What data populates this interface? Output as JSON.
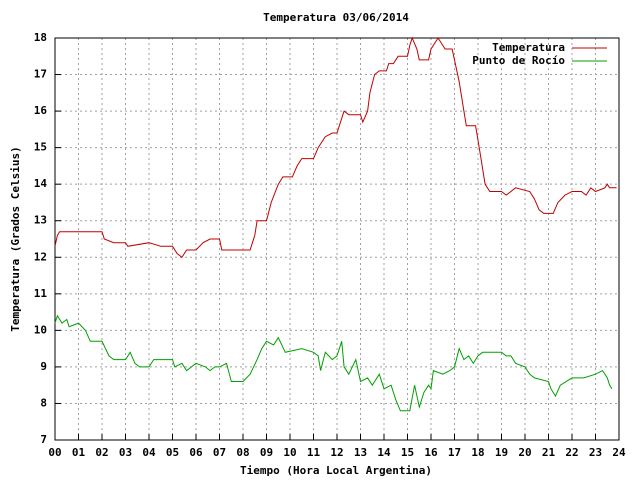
{
  "chart_data": {
    "type": "line",
    "title": "Temperatura 03/06/2014",
    "x_label": "Tiempo (Hora Local Argentina)",
    "y_label": "Temperatura (Grados Celsius)",
    "xlim": [
      0,
      24
    ],
    "ylim": [
      7,
      18
    ],
    "xticks": [
      {
        "value": 0,
        "label": "00"
      },
      {
        "value": 1,
        "label": "01"
      },
      {
        "value": 2,
        "label": "02"
      },
      {
        "value": 3,
        "label": "03"
      },
      {
        "value": 4,
        "label": "04"
      },
      {
        "value": 5,
        "label": "05"
      },
      {
        "value": 6,
        "label": "06"
      },
      {
        "value": 7,
        "label": "07"
      },
      {
        "value": 8,
        "label": "08"
      },
      {
        "value": 9,
        "label": "09"
      },
      {
        "value": 10,
        "label": "10"
      },
      {
        "value": 11,
        "label": "11"
      },
      {
        "value": 12,
        "label": "12"
      },
      {
        "value": 13,
        "label": "13"
      },
      {
        "value": 14,
        "label": "14"
      },
      {
        "value": 15,
        "label": "15"
      },
      {
        "value": 16,
        "label": "16"
      },
      {
        "value": 17,
        "label": "17"
      },
      {
        "value": 18,
        "label": "18"
      },
      {
        "value": 19,
        "label": "19"
      },
      {
        "value": 20,
        "label": "20"
      },
      {
        "value": 21,
        "label": "21"
      },
      {
        "value": 22,
        "label": "22"
      },
      {
        "value": 23,
        "label": "23"
      },
      {
        "value": 24,
        "label": "24"
      }
    ],
    "yticks": [
      7,
      8,
      9,
      10,
      11,
      12,
      13,
      14,
      15,
      16,
      17,
      18
    ],
    "grid": true,
    "legend": "top-right",
    "series": [
      {
        "name": "Temperatura",
        "color": "#c00000",
        "x": [
          0,
          0.1,
          0.2,
          1.3,
          2.0,
          2.1,
          2.5,
          3,
          3.1,
          4,
          4.5,
          5,
          5.2,
          5.4,
          5.6,
          6,
          6.3,
          6.6,
          7,
          7.1,
          8,
          8.3,
          8.5,
          8.6,
          9,
          9.2,
          9.5,
          9.7,
          10.1,
          10.3,
          10.5,
          11,
          11.2,
          11.5,
          11.8,
          12,
          12.2,
          12.3,
          12.5,
          13,
          13.1,
          13.3,
          13.4,
          13.6,
          13.8,
          14.1,
          14.2,
          14.4,
          14.6,
          15,
          15.1,
          15.2,
          15.4,
          15.5,
          15.9,
          16,
          16.3,
          16.6,
          16.9,
          17,
          17.2,
          17.4,
          17.5,
          17.9,
          18.1,
          18.3,
          18.5,
          19,
          19.2,
          19.4,
          19.6,
          20.2,
          20.4,
          20.6,
          20.8,
          21.2,
          21.4,
          21.7,
          22,
          22.4,
          22.6,
          22.8,
          23,
          23.4,
          23.5,
          23.6,
          23.9
        ],
        "values": [
          12.3,
          12.6,
          12.7,
          12.7,
          12.7,
          12.5,
          12.4,
          12.4,
          12.3,
          12.4,
          12.3,
          12.3,
          12.1,
          12.0,
          12.2,
          12.2,
          12.4,
          12.5,
          12.5,
          12.2,
          12.2,
          12.2,
          12.6,
          13.0,
          13.0,
          13.5,
          14.0,
          14.2,
          14.2,
          14.5,
          14.7,
          14.7,
          15.0,
          15.3,
          15.4,
          15.4,
          15.8,
          16.0,
          15.9,
          15.9,
          15.7,
          16.0,
          16.5,
          17.0,
          17.1,
          17.1,
          17.3,
          17.3,
          17.5,
          17.5,
          17.8,
          18.0,
          17.7,
          17.4,
          17.4,
          17.7,
          18.0,
          17.7,
          17.7,
          17.4,
          16.8,
          16.0,
          15.6,
          15.6,
          14.8,
          14.0,
          13.8,
          13.8,
          13.7,
          13.8,
          13.9,
          13.8,
          13.6,
          13.3,
          13.2,
          13.2,
          13.5,
          13.7,
          13.8,
          13.8,
          13.7,
          13.9,
          13.8,
          13.9,
          14.0,
          13.9,
          13.9
        ]
      },
      {
        "name": "Punto de Rocío",
        "color": "#00a000",
        "x": [
          0,
          0.1,
          0.3,
          0.5,
          0.6,
          1,
          1.3,
          1.5,
          2,
          2.3,
          2.5,
          3,
          3.2,
          3.4,
          3.6,
          4,
          4.2,
          5,
          5.1,
          5.4,
          5.6,
          6,
          6.4,
          6.6,
          6.8,
          7,
          7.3,
          7.5,
          8,
          8.3,
          8.6,
          8.8,
          9,
          9.3,
          9.5,
          9.8,
          10.5,
          11,
          11.2,
          11.3,
          11.5,
          11.8,
          12,
          12.2,
          12.3,
          12.5,
          12.8,
          13,
          13.3,
          13.5,
          13.8,
          14,
          14.3,
          14.5,
          14.7,
          15.1,
          15.3,
          15.5,
          15.7,
          15.9,
          16,
          16.1,
          16.5,
          16.8,
          17,
          17.2,
          17.4,
          17.6,
          17.8,
          18,
          18.2,
          18.7,
          19,
          19.2,
          19.4,
          19.6,
          20,
          20.2,
          20.4,
          21,
          21.1,
          21.3,
          21.5,
          22,
          22.5,
          23,
          23.3,
          23.5,
          23.6,
          23.7
        ],
        "values": [
          10.2,
          10.4,
          10.2,
          10.3,
          10.1,
          10.2,
          10.0,
          9.7,
          9.7,
          9.3,
          9.2,
          9.2,
          9.4,
          9.1,
          9.0,
          9.0,
          9.2,
          9.2,
          9.0,
          9.1,
          8.9,
          9.1,
          9.0,
          8.9,
          9.0,
          9.0,
          9.1,
          8.6,
          8.6,
          8.8,
          9.2,
          9.5,
          9.7,
          9.6,
          9.8,
          9.4,
          9.5,
          9.4,
          9.3,
          8.9,
          9.4,
          9.2,
          9.3,
          9.7,
          9.0,
          8.8,
          9.2,
          8.6,
          8.7,
          8.5,
          8.8,
          8.4,
          8.5,
          8.1,
          7.8,
          7.8,
          8.5,
          7.9,
          8.3,
          8.5,
          8.4,
          8.9,
          8.8,
          8.9,
          9.0,
          9.5,
          9.2,
          9.3,
          9.1,
          9.3,
          9.4,
          9.4,
          9.4,
          9.3,
          9.3,
          9.1,
          9.0,
          8.8,
          8.7,
          8.6,
          8.4,
          8.2,
          8.5,
          8.7,
          8.7,
          8.8,
          8.9,
          8.7,
          8.5,
          8.4
        ]
      }
    ]
  }
}
